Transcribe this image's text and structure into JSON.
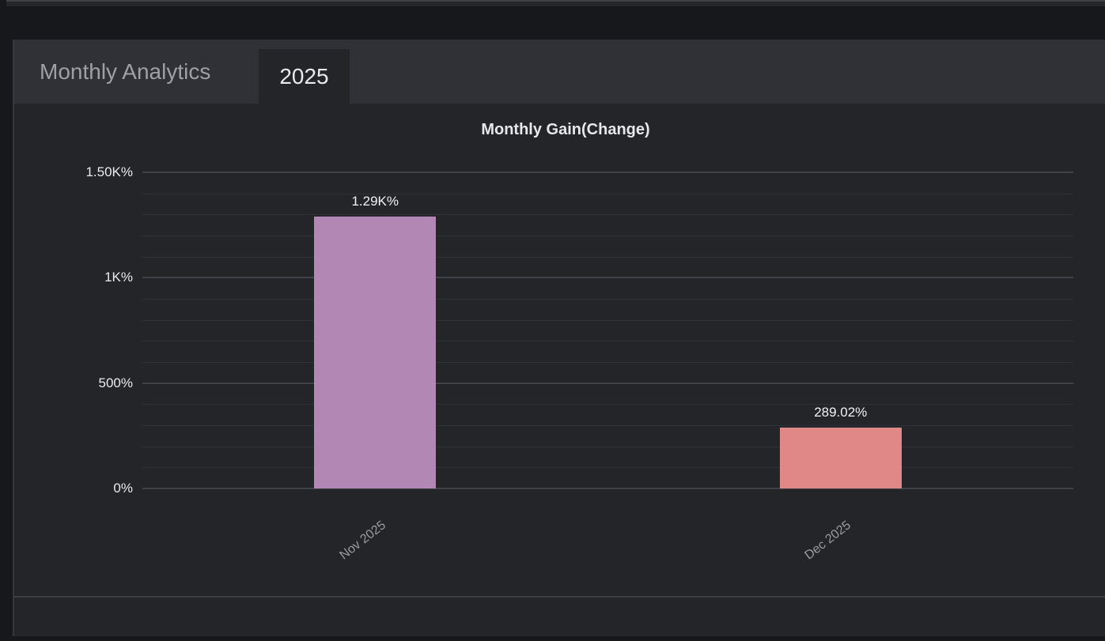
{
  "panel": {
    "header": {
      "title": "Monthly Analytics",
      "tab": "2025"
    }
  },
  "chart_data": {
    "type": "bar",
    "title": "Monthly Gain(Change)",
    "categories": [
      "Nov 2025",
      "Dec 2025"
    ],
    "values": [
      1290,
      289.02
    ],
    "value_labels": [
      "1.29K%",
      "289.02%"
    ],
    "bar_colors": [
      "#b287b3",
      "#e08787"
    ],
    "xlabel": "",
    "ylabel": "",
    "ylim": [
      0,
      1500
    ],
    "grid_step": 100,
    "y_ticks": [
      {
        "value": 0,
        "label": "0%"
      },
      {
        "value": 500,
        "label": "500%"
      },
      {
        "value": 1000,
        "label": "1K%"
      },
      {
        "value": 1500,
        "label": "1.50K%"
      }
    ],
    "x_label_rotation_deg": -38,
    "grid": "horizontal-only",
    "legend": "none",
    "colors": {
      "grid_minor": "#2e3136",
      "grid_major": "#3f4248",
      "axis_label": "#eaebec",
      "category_label": "#9b9ca1",
      "value_label": "#f2f2f3"
    }
  }
}
